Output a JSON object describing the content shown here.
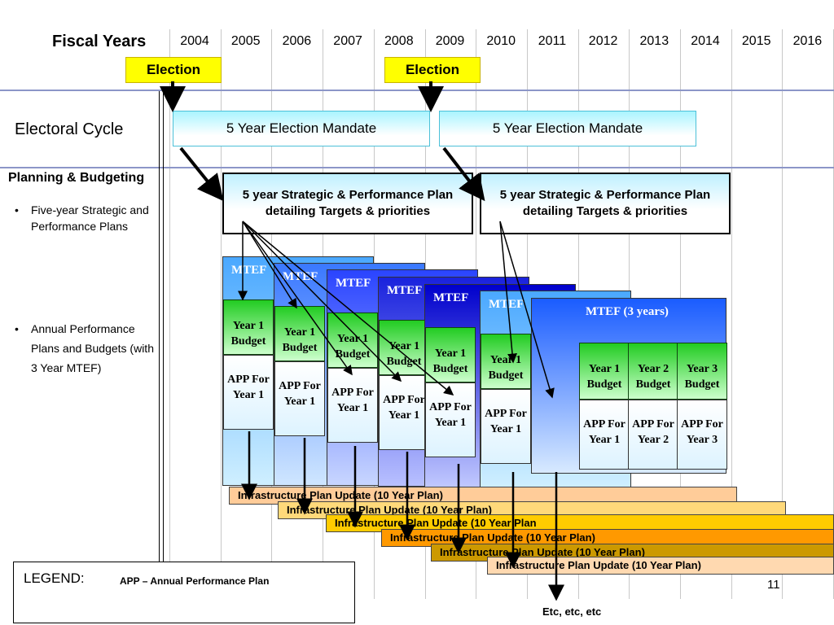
{
  "header": {
    "fiscal_years_label": "Fiscal Years"
  },
  "years": [
    "2004",
    "2005",
    "2006",
    "2007",
    "2008",
    "2009",
    "2010",
    "2011",
    "2012",
    "2013",
    "2014",
    "2015",
    "2016"
  ],
  "elections": [
    "Election",
    "Election"
  ],
  "rows": {
    "electoral_cycle": "Electoral Cycle",
    "planning_heading": "Planning & Budgeting",
    "bullet1": "Five-year Strategic and Performance Plans",
    "bullet2": "Annual Performance Plans and Budgets (with 3 Year MTEF)"
  },
  "mandates": [
    "5 Year Election Mandate",
    "5 Year Election Mandate"
  ],
  "plans": [
    "5 year Strategic & Performance Plan detailing Targets & priorities",
    "5 year Strategic & Performance Plan detailing Targets & priorities"
  ],
  "mtef": {
    "short_label": "MTEF",
    "full_label": "MTEF (3 years)",
    "year1_budget": "Year 1 Budget",
    "year2_budget": "Year 2 Budget",
    "year3_budget": "Year 3 Budget",
    "app_year1": "APP For Year 1",
    "app_year2": "APP For Year 2",
    "app_year3": "APP For Year 3"
  },
  "infra": [
    "Infrastructure Plan Update (10 Year Plan)",
    "Infrastructure Plan Update (10 Year Plan)",
    "Infrastructure Plan Update (10 Year Plan",
    "Infrastructure Plan Update (10 Year Plan)",
    "Infrastructure Plan Update (10 Year Plan)",
    "Infrastructure Plan Update (10 Year Plan)"
  ],
  "colors": {
    "infra": [
      "#ffcc99",
      "#ffd97a",
      "#ffcc00",
      "#ff9900",
      "#cc9900",
      "#ffd9b0"
    ]
  },
  "legend": {
    "title": "LEGEND:",
    "app": "APP – Annual Performance Plan"
  },
  "footer": {
    "etc": "Etc, etc, etc",
    "page_number": "11"
  }
}
